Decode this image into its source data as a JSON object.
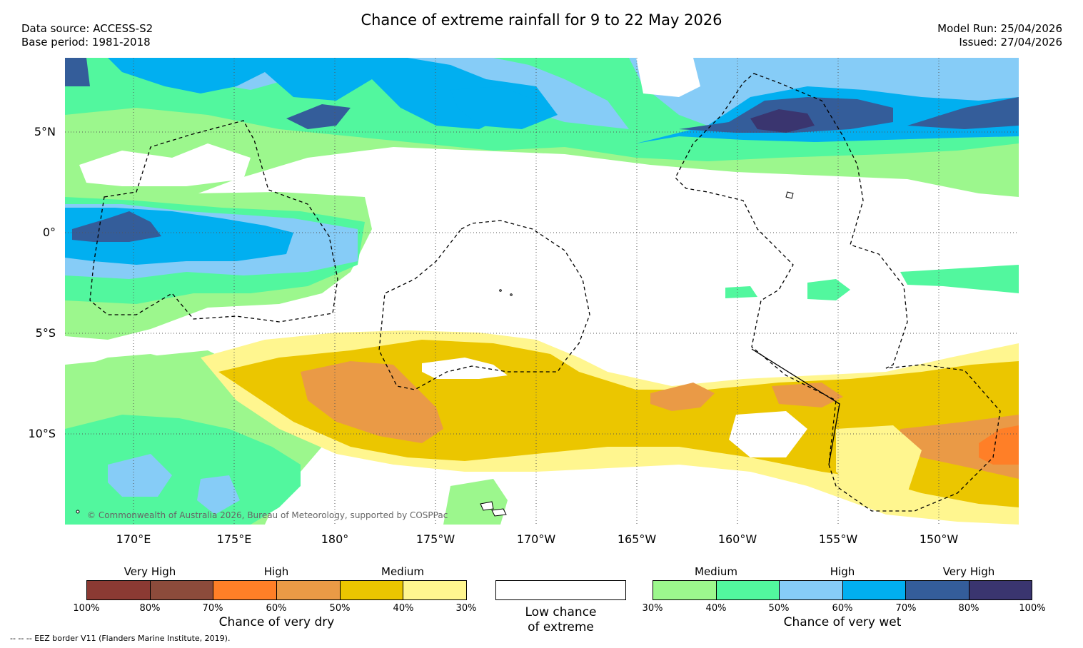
{
  "header": {
    "title": "Chance of extreme rainfall for 9 to 22 May 2026",
    "data_source": "Data source: ACCESS-S2",
    "base_period": "Base period: 1981-2018",
    "model_run": "Model Run: 25/04/2026",
    "issued": "Issued: 27/04/2026"
  },
  "map": {
    "lat_labels": [
      "5°N",
      "0°",
      "5°S",
      "10°S"
    ],
    "lon_labels": [
      "170°E",
      "175°E",
      "180°",
      "175°W",
      "170°W",
      "165°W",
      "160°W",
      "155°W",
      "150°W"
    ],
    "copyright": "© Commonwealth of Australia 2026, Bureau of Meteorology, supported by COSPPac"
  },
  "legend": {
    "dry": {
      "categories": [
        "Very High",
        "High",
        "Medium"
      ],
      "ticks": [
        "100%",
        "80%",
        "70%",
        "60%",
        "50%",
        "40%",
        "30%"
      ],
      "colors": [
        "#8b3a33",
        "#8c4b3b",
        "#ff7f27",
        "#ea9a46",
        "#ebc600",
        "#fff68f"
      ],
      "title": "Chance of very dry"
    },
    "neutral": {
      "line1": "Low chance",
      "line2": "of extreme",
      "color": "#ffffff"
    },
    "wet": {
      "categories": [
        "Medium",
        "High",
        "Very High"
      ],
      "ticks": [
        "30%",
        "40%",
        "50%",
        "60%",
        "70%",
        "80%",
        "100%"
      ],
      "colors": [
        "#9cf78d",
        "#52f79e",
        "#86ccf7",
        "#01aff0",
        "#345d9a",
        "#3a356f"
      ],
      "title": "Chance of very wet"
    },
    "footnote": "--  --  -- EEZ border V11 (Flanders Marine Institute, 2019)."
  }
}
